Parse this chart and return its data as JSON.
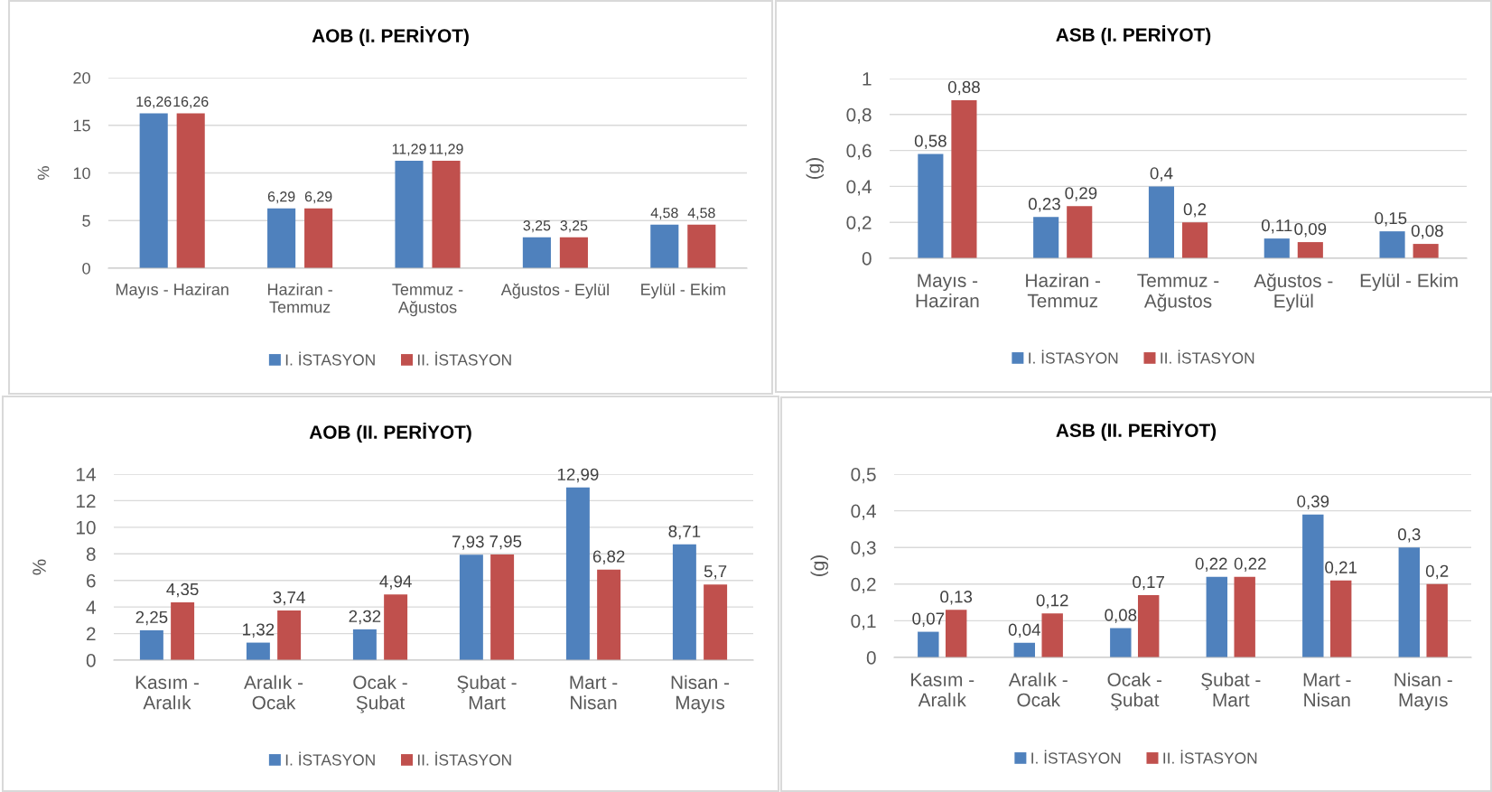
{
  "chart_data": [
    {
      "type": "bar",
      "title": "AOB (I. PERİYOT)",
      "ylabel": "%",
      "categories": [
        "Mayıs - Haziran",
        "Haziran - Temmuz",
        "Temmuz - Ağustos",
        "Ağustos - Eylül",
        "Eylül - Ekim"
      ],
      "series": [
        {
          "name": "I. İSTASYON",
          "color": "#4f81bd",
          "values": [
            16.26,
            6.29,
            11.29,
            3.25,
            4.58
          ],
          "value_labels": [
            "16,26",
            "6,29",
            "11,29",
            "3,25",
            "4,58"
          ]
        },
        {
          "name": "II. İSTASYON",
          "color": "#c0504d",
          "values": [
            16.26,
            6.29,
            11.29,
            3.25,
            4.58
          ],
          "value_labels": [
            "16,26",
            "6,29",
            "11,29",
            "3,25",
            "4,58"
          ]
        }
      ],
      "ylim": [
        0,
        20
      ],
      "yticks": [
        0,
        5,
        10,
        15,
        20
      ],
      "grid": "y",
      "legend": "bottom"
    },
    {
      "type": "bar",
      "title": "ASB (I. PERİYOT)",
      "ylabel": "(g)",
      "categories": [
        "Mayıs - Haziran",
        "Haziran - Temmuz",
        "Temmuz - Ağustos",
        "Ağustos - Eylül",
        "Eylül - Ekim"
      ],
      "series": [
        {
          "name": "I. İSTASYON",
          "color": "#4f81bd",
          "values": [
            0.58,
            0.23,
            0.4,
            0.11,
            0.15
          ],
          "value_labels": [
            "0,58",
            "0,23",
            "0,4",
            "0,11",
            "0,15"
          ]
        },
        {
          "name": "II. İSTASYON",
          "color": "#c0504d",
          "values": [
            0.88,
            0.29,
            0.2,
            0.09,
            0.08
          ],
          "value_labels": [
            "0,88",
            "0,29",
            "0,2",
            "0,09",
            "0,08"
          ]
        }
      ],
      "ylim": [
        0,
        1
      ],
      "yticks": [
        0,
        {
          "value": 0.2,
          "label": "0,2"
        },
        {
          "value": 0.4,
          "label": "0,4"
        },
        {
          "value": 0.6,
          "label": "0,6"
        },
        {
          "value": 0.8,
          "label": "0,8"
        },
        1
      ],
      "grid": "y",
      "legend": "bottom"
    },
    {
      "type": "bar",
      "title": "AOB (II. PERİYOT)",
      "ylabel": "%",
      "categories": [
        "Kasım - Aralık",
        "Aralık - Ocak",
        "Ocak - Şubat",
        "Şubat - Mart",
        "Mart - Nisan",
        "Nisan - Mayıs"
      ],
      "series": [
        {
          "name": "I. İSTASYON",
          "color": "#4f81bd",
          "values": [
            2.25,
            1.32,
            2.32,
            7.93,
            12.99,
            8.71
          ],
          "value_labels": [
            "2,25",
            "1,32",
            "2,32",
            "7,93",
            "12,99",
            "8,71"
          ]
        },
        {
          "name": "II. İSTASYON",
          "color": "#c0504d",
          "values": [
            4.35,
            3.74,
            4.94,
            7.95,
            6.82,
            5.7
          ],
          "value_labels": [
            "4,35",
            "3,74",
            "4,94",
            "7,95",
            "6,82",
            "5,7"
          ]
        }
      ],
      "ylim": [
        0,
        14
      ],
      "yticks": [
        0,
        2,
        4,
        6,
        8,
        10,
        12,
        14
      ],
      "grid": "y",
      "legend": "bottom"
    },
    {
      "type": "bar",
      "title": "ASB (II. PERİYOT)",
      "ylabel": "(g)",
      "categories": [
        "Kasım - Aralık",
        "Aralık - Ocak",
        "Ocak - Şubat",
        "Şubat - Mart",
        "Mart - Nisan",
        "Nisan - Mayıs"
      ],
      "series": [
        {
          "name": "I. İSTASYON",
          "color": "#4f81bd",
          "values": [
            0.07,
            0.04,
            0.08,
            0.22,
            0.39,
            0.3
          ],
          "value_labels": [
            "0,07",
            "0,04",
            "0,08",
            "0,22",
            "0,39",
            "0,3"
          ]
        },
        {
          "name": "II. İSTASYON",
          "color": "#c0504d",
          "values": [
            0.13,
            0.12,
            0.17,
            0.22,
            0.21,
            0.2
          ],
          "value_labels": [
            "0,13",
            "0,12",
            "0,17",
            "0,22",
            "0,21",
            "0,2"
          ]
        }
      ],
      "ylim": [
        0,
        0.5
      ],
      "yticks": [
        0,
        {
          "value": 0.1,
          "label": "0,1"
        },
        {
          "value": 0.2,
          "label": "0,2"
        },
        {
          "value": 0.3,
          "label": "0,3"
        },
        {
          "value": 0.4,
          "label": "0,4"
        },
        {
          "value": 0.5,
          "label": "0,5"
        }
      ],
      "grid": "y",
      "legend": "bottom"
    }
  ]
}
